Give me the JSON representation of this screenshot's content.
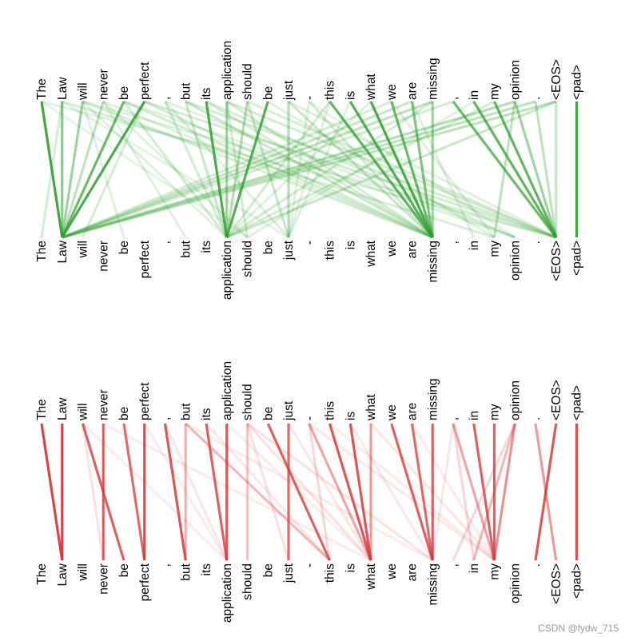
{
  "tokens": [
    "The",
    "Law",
    "will",
    "never",
    "be",
    "perfect",
    ",",
    "but",
    "its",
    "application",
    "should",
    "be",
    "just",
    "-",
    "this",
    "is",
    "what",
    "we",
    "are",
    "missing",
    ",",
    "in",
    "my",
    "opinion",
    ".",
    "<EOS>",
    "<pad>"
  ],
  "panels": [
    {
      "name": "top-panel",
      "color": "#2e9e2e",
      "links": [
        [
          0,
          1,
          0.9
        ],
        [
          1,
          1,
          0.55
        ],
        [
          1,
          0,
          0.2
        ],
        [
          2,
          1,
          0.45
        ],
        [
          2,
          4,
          0.15
        ],
        [
          3,
          1,
          0.3
        ],
        [
          3,
          7,
          0.15
        ],
        [
          4,
          1,
          0.7
        ],
        [
          4,
          19,
          0.2
        ],
        [
          5,
          1,
          0.85
        ],
        [
          5,
          2,
          0.2
        ],
        [
          6,
          9,
          0.2
        ],
        [
          7,
          9,
          0.25
        ],
        [
          7,
          19,
          0.25
        ],
        [
          8,
          9,
          0.85
        ],
        [
          9,
          9,
          0.45
        ],
        [
          9,
          10,
          0.2
        ],
        [
          10,
          9,
          0.35
        ],
        [
          10,
          12,
          0.25
        ],
        [
          11,
          9,
          0.8
        ],
        [
          12,
          12,
          0.35
        ],
        [
          12,
          19,
          0.25
        ],
        [
          13,
          19,
          0.2
        ],
        [
          14,
          19,
          0.75
        ],
        [
          15,
          19,
          0.8
        ],
        [
          16,
          19,
          0.85
        ],
        [
          17,
          19,
          0.7
        ],
        [
          18,
          19,
          0.6
        ],
        [
          19,
          19,
          0.45
        ],
        [
          20,
          25,
          0.7
        ],
        [
          21,
          25,
          0.75
        ],
        [
          22,
          25,
          0.75
        ],
        [
          23,
          25,
          0.45
        ],
        [
          23,
          22,
          0.3
        ],
        [
          24,
          25,
          0.3
        ],
        [
          25,
          25,
          0.25
        ],
        [
          26,
          26,
          0.9
        ],
        [
          2,
          19,
          0.18
        ],
        [
          3,
          19,
          0.15
        ],
        [
          1,
          22,
          0.18
        ],
        [
          0,
          25,
          0.15
        ],
        [
          2,
          25,
          0.15
        ],
        [
          4,
          23,
          0.15
        ],
        [
          5,
          25,
          0.2
        ],
        [
          6,
          23,
          0.15
        ],
        [
          7,
          25,
          0.2
        ],
        [
          8,
          23,
          0.18
        ],
        [
          10,
          25,
          0.18
        ],
        [
          11,
          22,
          0.15
        ],
        [
          13,
          23,
          0.12
        ],
        [
          14,
          9,
          0.2
        ],
        [
          16,
          9,
          0.15
        ],
        [
          17,
          1,
          0.2
        ],
        [
          18,
          1,
          0.25
        ],
        [
          19,
          1,
          0.3
        ],
        [
          20,
          1,
          0.2
        ],
        [
          22,
          9,
          0.2
        ],
        [
          23,
          1,
          0.35
        ],
        [
          24,
          1,
          0.3
        ],
        [
          25,
          1,
          0.3
        ],
        [
          25,
          9,
          0.25
        ],
        [
          21,
          10,
          0.15
        ],
        [
          19,
          9,
          0.2
        ],
        [
          15,
          12,
          0.15
        ],
        [
          13,
          12,
          0.15
        ],
        [
          3,
          10,
          0.15
        ],
        [
          0,
          10,
          0.12
        ],
        [
          1,
          12,
          0.12
        ],
        [
          2,
          9,
          0.15
        ],
        [
          12,
          25,
          0.15
        ],
        [
          9,
          25,
          0.2
        ],
        [
          9,
          19,
          0.2
        ],
        [
          14,
          12,
          0.15
        ],
        [
          17,
          22,
          0.15
        ],
        [
          18,
          21,
          0.15
        ],
        [
          6,
          12,
          0.15
        ],
        [
          4,
          9,
          0.2
        ],
        [
          5,
          19,
          0.2
        ],
        [
          8,
          19,
          0.18
        ]
      ]
    },
    {
      "name": "bottom-panel",
      "color": "#d63a3a",
      "links": [
        [
          0,
          1,
          0.95
        ],
        [
          1,
          1,
          0.95
        ],
        [
          2,
          4,
          0.8
        ],
        [
          2,
          3,
          0.15
        ],
        [
          3,
          3,
          0.8
        ],
        [
          4,
          5,
          0.75
        ],
        [
          5,
          5,
          0.9
        ],
        [
          6,
          7,
          0.85
        ],
        [
          7,
          7,
          0.4
        ],
        [
          7,
          14,
          0.35
        ],
        [
          8,
          9,
          0.8
        ],
        [
          9,
          9,
          0.85
        ],
        [
          10,
          10,
          0.3
        ],
        [
          10,
          12,
          0.15
        ],
        [
          10,
          16,
          0.15
        ],
        [
          10,
          19,
          0.15
        ],
        [
          11,
          14,
          0.8
        ],
        [
          12,
          12,
          0.75
        ],
        [
          13,
          16,
          0.45
        ],
        [
          13,
          14,
          0.2
        ],
        [
          14,
          16,
          0.85
        ],
        [
          15,
          16,
          0.85
        ],
        [
          16,
          16,
          0.5
        ],
        [
          17,
          19,
          0.8
        ],
        [
          18,
          19,
          0.75
        ],
        [
          19,
          19,
          0.8
        ],
        [
          20,
          22,
          0.45
        ],
        [
          20,
          21,
          0.2
        ],
        [
          21,
          22,
          0.8
        ],
        [
          22,
          22,
          0.8
        ],
        [
          23,
          22,
          0.55
        ],
        [
          23,
          21,
          0.35
        ],
        [
          23,
          20,
          0.2
        ],
        [
          24,
          25,
          0.5
        ],
        [
          25,
          24,
          0.85
        ],
        [
          26,
          26,
          0.9
        ],
        [
          2,
          9,
          0.1
        ],
        [
          5,
          9,
          0.1
        ],
        [
          8,
          14,
          0.12
        ],
        [
          7,
          19,
          0.1
        ],
        [
          3,
          16,
          0.1
        ],
        [
          6,
          9,
          0.12
        ],
        [
          13,
          22,
          0.12
        ],
        [
          15,
          19,
          0.12
        ],
        [
          18,
          22,
          0.1
        ],
        [
          16,
          22,
          0.12
        ],
        [
          12,
          16,
          0.12
        ],
        [
          9,
          16,
          0.1
        ],
        [
          14,
          22,
          0.1
        ],
        [
          20,
          19,
          0.12
        ]
      ]
    }
  ],
  "watermark": "CSDN @fydw_715"
}
